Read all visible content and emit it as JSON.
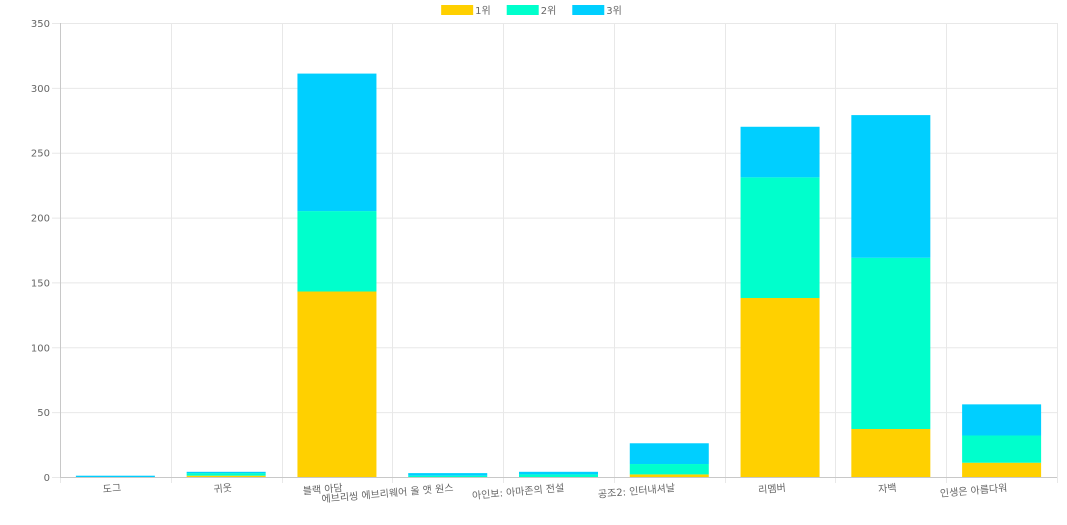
{
  "chart_data": {
    "type": "bar",
    "stacked": true,
    "categories": [
      "도그",
      "귀웃",
      "블랙 아담",
      "에브리씽 에브리웨어 올 앳 원스",
      "아인보: 아마존의 전설",
      "공조2: 인터내셔날",
      "리멤버",
      "자백",
      "인생은 아름다워"
    ],
    "series": [
      {
        "name": "1위",
        "color": "#ffd000",
        "values": [
          0,
          1,
          143,
          0,
          0,
          2,
          138,
          37,
          11
        ]
      },
      {
        "name": "2위",
        "color": "#00ffcc",
        "values": [
          0,
          2,
          62,
          1,
          2,
          8,
          93,
          132,
          21
        ]
      },
      {
        "name": "3위",
        "color": "#00cfff",
        "values": [
          1,
          1,
          106,
          2,
          2,
          16,
          39,
          110,
          24
        ]
      }
    ],
    "y_ticks": [
      "0",
      "50",
      "100",
      "150",
      "200",
      "250",
      "300",
      "350"
    ],
    "ylim": [
      0,
      350
    ],
    "grid": true,
    "legend_position": "top-center"
  }
}
